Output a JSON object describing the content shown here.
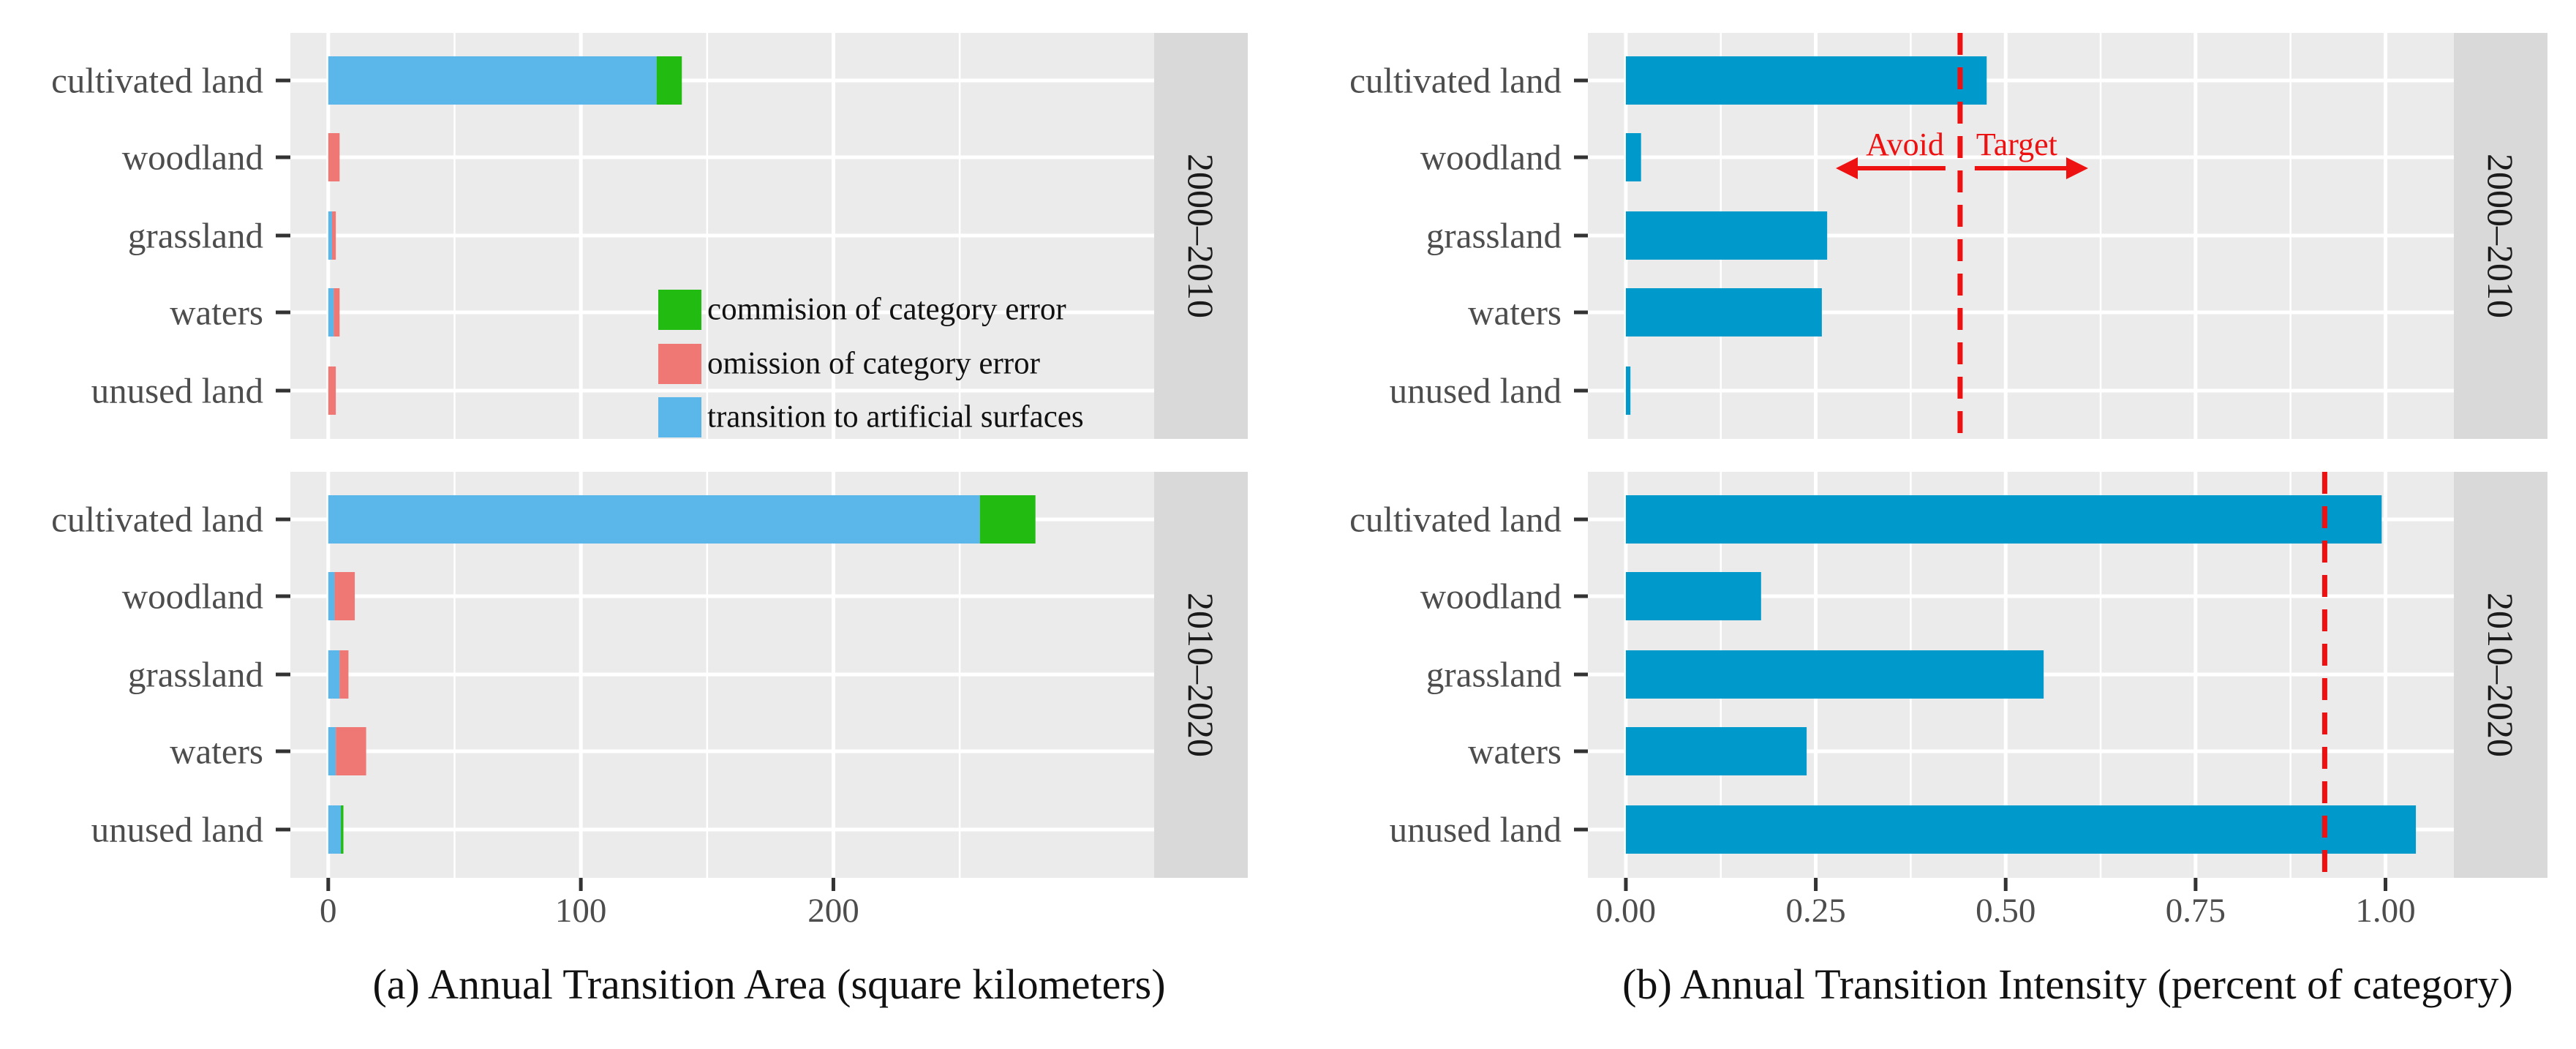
{
  "colors": {
    "panel_bg": "#EBEBEB",
    "strip_bg": "#D9D9D9",
    "grid": "#FFFFFF",
    "commission": "#22BB11",
    "omission": "#F07874",
    "transition": "#5BB6EA",
    "intensity_bar": "#0099CC",
    "reference_line": "#EE1111",
    "text": "#333333"
  },
  "chart_data": [
    {
      "type": "bar",
      "orientation": "horizontal",
      "stacked": true,
      "caption": "(a) Annual Transition Area (square kilometers)",
      "categories": [
        "cultivated land",
        "woodland",
        "grassland",
        "waters",
        "unused land"
      ],
      "xlim": [
        -15,
        327
      ],
      "xticks": [
        0,
        100,
        200
      ],
      "xtick_labels": [
        "0",
        "100",
        "200"
      ],
      "legend": {
        "position": "inside-lower-right",
        "entries": [
          {
            "key": "commission",
            "label": "commision of category error"
          },
          {
            "key": "omission",
            "label": "omission of category error"
          },
          {
            "key": "transition",
            "label": "transition to artificial surfaces"
          }
        ]
      },
      "panels": [
        {
          "strip": "2000–2010",
          "series": [
            {
              "name": "transition to artificial surfaces",
              "key": "transition",
              "values": [
                130,
                0,
                1.5,
                2.2,
                0
              ]
            },
            {
              "name": "omission of category error",
              "key": "omission",
              "values": [
                0,
                4.5,
                1.5,
                2.3,
                3.0
              ]
            },
            {
              "name": "commision of category error",
              "key": "commission",
              "values": [
                10,
                0,
                0,
                0,
                0
              ]
            }
          ]
        },
        {
          "strip": "2010–2020",
          "series": [
            {
              "name": "transition to artificial surfaces",
              "key": "transition",
              "values": [
                258,
                2.5,
                4.5,
                3.0,
                5.0
              ]
            },
            {
              "name": "omission of category error",
              "key": "omission",
              "values": [
                0,
                8.0,
                3.5,
                12.0,
                0
              ]
            },
            {
              "name": "commision of category error",
              "key": "commission",
              "values": [
                22,
                0,
                0,
                0,
                1.0
              ]
            }
          ]
        }
      ]
    },
    {
      "type": "bar",
      "orientation": "horizontal",
      "caption": "(b) Annual Transition Intensity (percent of category)",
      "categories": [
        "cultivated land",
        "woodland",
        "grassland",
        "waters",
        "unused land"
      ],
      "xlim": [
        -0.05,
        1.09
      ],
      "xticks": [
        0,
        0.25,
        0.5,
        0.75,
        1.0
      ],
      "xtick_labels": [
        "0.00",
        "0.25",
        "0.50",
        "0.75",
        "1.00"
      ],
      "annotations": {
        "avoid": "Avoid",
        "target": "Target"
      },
      "panels": [
        {
          "strip": "2000–2010",
          "values": [
            0.475,
            0.02,
            0.265,
            0.258,
            0.006
          ],
          "uniform_intensity": 0.44
        },
        {
          "strip": "2010–2020",
          "values": [
            0.995,
            0.178,
            0.55,
            0.238,
            1.04
          ],
          "uniform_intensity": 0.92
        }
      ]
    }
  ]
}
